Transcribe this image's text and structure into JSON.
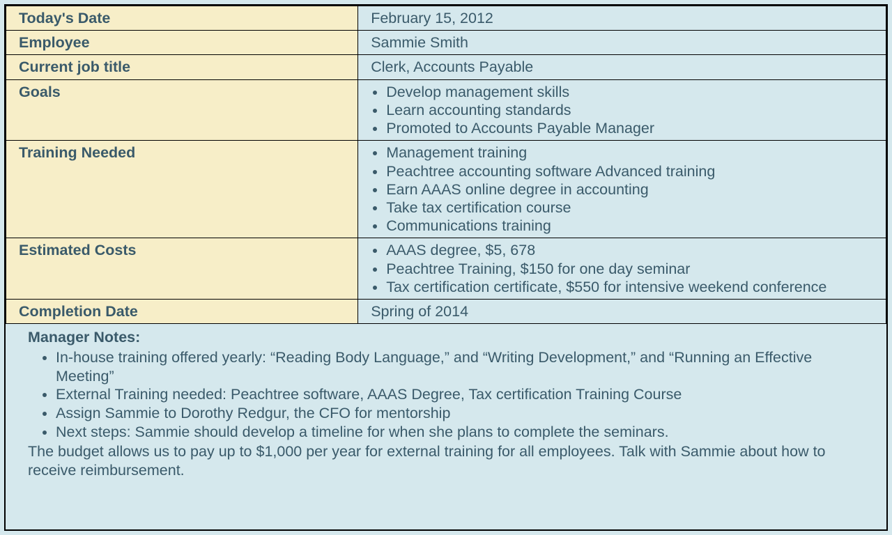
{
  "colors": {
    "label_bg": "#f7eec8",
    "value_bg": "#d5e8ed",
    "border": "#000000",
    "text": "#3a5a6a"
  },
  "rows": {
    "date": {
      "label": "Today's Date",
      "value": "February 15, 2012"
    },
    "employee": {
      "label": "Employee",
      "value": "Sammie Smith"
    },
    "title": {
      "label": "Current job title",
      "value": "Clerk, Accounts Payable"
    },
    "goals": {
      "label": "Goals",
      "items": [
        "Develop management skills",
        "Learn accounting standards",
        "Promoted to Accounts Payable Manager"
      ]
    },
    "training": {
      "label": "Training Needed",
      "items": [
        "Management training",
        "Peachtree accounting software Advanced training",
        "Earn AAAS online degree in accounting",
        "Take tax certification course",
        "Communications training"
      ]
    },
    "costs": {
      "label": "Estimated Costs",
      "items": [
        "AAAS degree, $5, 678",
        "Peachtree Training, $150 for one day seminar",
        "Tax certification certificate, $550 for intensive weekend conference"
      ]
    },
    "completion": {
      "label": "Completion Date",
      "value": "Spring of 2014"
    }
  },
  "notes": {
    "title": "Manager Notes:",
    "items": [
      "In-house training offered yearly:  “Reading Body Language,” and “Writing Development,” and  “Running an Effective Meeting”",
      "External Training needed:  Peachtree software, AAAS Degree, Tax certification Training Course",
      "Assign Sammie to Dorothy Redgur, the CFO for mentorship",
      "Next steps: Sammie should develop a timeline for when she plans to complete the seminars."
    ],
    "footer": "The budget allows us to pay up to $1,000 per year for external training for all employees.  Talk with Sammie about how to receive reimbursement."
  }
}
